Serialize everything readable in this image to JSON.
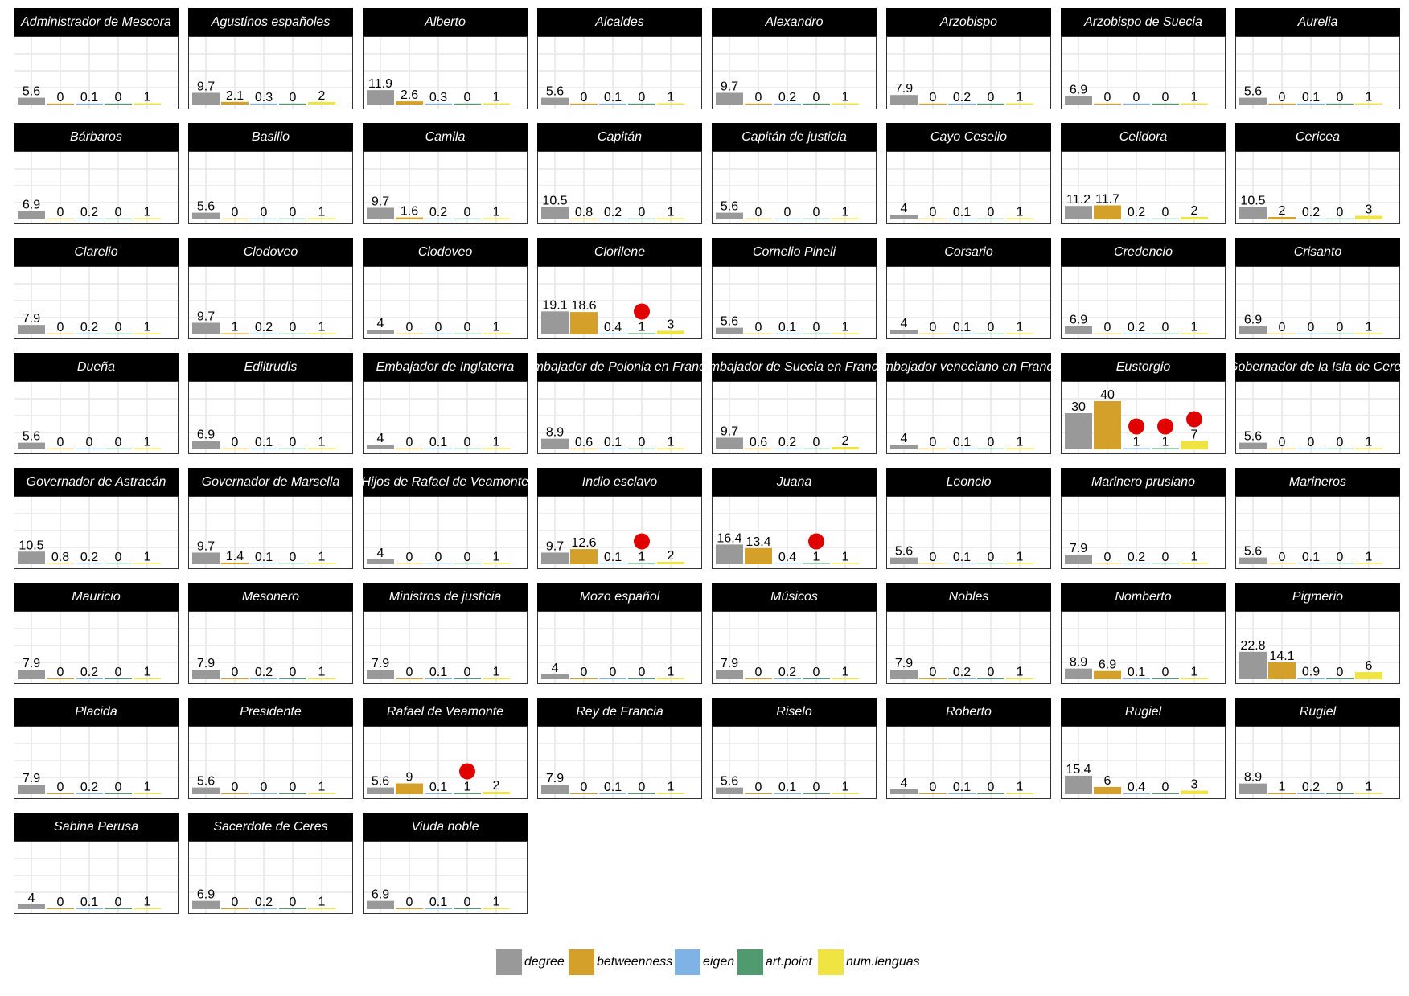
{
  "chart_data": {
    "type": "bar",
    "layout": "small-multiples",
    "categories": [
      "degree",
      "betweenness",
      "eigen",
      "art.point",
      "num.lenguas"
    ],
    "colors": {
      "degree": "#999999",
      "betweenness": "#d4a029",
      "eigen": "#7fb3e6",
      "art.point": "#4f9a6e",
      "num.lenguas": "#f0e442",
      "marker": "#e00000"
    },
    "marker": "red dot drawn above art.point value when the node is an articulation point",
    "ylim": [
      0,
      40
    ],
    "grid": true,
    "legend": {
      "position": "bottom",
      "entries": [
        "degree",
        "betweenness",
        "eigen",
        "art.point",
        "num.lenguas"
      ]
    },
    "panels": [
      {
        "name": "Administrador de Mescora",
        "values": [
          5.6,
          0,
          0.1,
          0,
          1
        ],
        "labels": [
          "5.6",
          "0",
          "0.1",
          "0",
          "1"
        ],
        "art_point": false
      },
      {
        "name": "Agustinos españoles",
        "values": [
          9.7,
          2.1,
          0.3,
          0,
          2
        ],
        "labels": [
          "9.7",
          "2.1",
          "0.3",
          "0",
          "2"
        ],
        "art_point": false
      },
      {
        "name": "Alberto",
        "values": [
          11.9,
          2.6,
          0.3,
          0,
          1
        ],
        "labels": [
          "11.9",
          "2.6",
          "0.3",
          "0",
          "1"
        ],
        "art_point": false
      },
      {
        "name": "Alcaldes",
        "values": [
          5.6,
          0,
          0.1,
          0,
          1
        ],
        "labels": [
          "5.6",
          "0",
          "0.1",
          "0",
          "1"
        ],
        "art_point": false
      },
      {
        "name": "Alexandro",
        "values": [
          9.7,
          0,
          0.2,
          0,
          1
        ],
        "labels": [
          "9.7",
          "0",
          "0.2",
          "0",
          "1"
        ],
        "art_point": false
      },
      {
        "name": "Arzobispo",
        "values": [
          7.9,
          0,
          0.2,
          0,
          1
        ],
        "labels": [
          "7.9",
          "0",
          "0.2",
          "0",
          "1"
        ],
        "art_point": false
      },
      {
        "name": "Arzobispo de Suecia",
        "values": [
          6.9,
          0,
          0,
          0,
          1
        ],
        "labels": [
          "6.9",
          "0",
          "0",
          "0",
          "1"
        ],
        "art_point": false
      },
      {
        "name": "Aurelia",
        "values": [
          5.6,
          0,
          0.1,
          0,
          1
        ],
        "labels": [
          "5.6",
          "0",
          "0.1",
          "0",
          "1"
        ],
        "art_point": false
      },
      {
        "name": "Bárbaros",
        "values": [
          6.9,
          0,
          0.2,
          0,
          1
        ],
        "labels": [
          "6.9",
          "0",
          "0.2",
          "0",
          "1"
        ],
        "art_point": false
      },
      {
        "name": "Basilio",
        "values": [
          5.6,
          0,
          0,
          0,
          1
        ],
        "labels": [
          "5.6",
          "0",
          "0",
          "0",
          "1"
        ],
        "art_point": false
      },
      {
        "name": "Camila",
        "values": [
          9.7,
          1.6,
          0.2,
          0,
          1
        ],
        "labels": [
          "9.7",
          "1.6",
          "0.2",
          "0",
          "1"
        ],
        "art_point": false
      },
      {
        "name": "Capitán",
        "values": [
          10.5,
          0.8,
          0.2,
          0,
          1
        ],
        "labels": [
          "10.5",
          "0.8",
          "0.2",
          "0",
          "1"
        ],
        "art_point": false
      },
      {
        "name": "Capitán de justicia",
        "values": [
          5.6,
          0,
          0,
          0,
          1
        ],
        "labels": [
          "5.6",
          "0",
          "0",
          "0",
          "1"
        ],
        "art_point": false
      },
      {
        "name": "Cayo Ceselio",
        "values": [
          4,
          0,
          0.1,
          0,
          1
        ],
        "labels": [
          "4",
          "0",
          "0.1",
          "0",
          "1"
        ],
        "art_point": false
      },
      {
        "name": "Celidora",
        "values": [
          11.2,
          11.7,
          0.2,
          0,
          2
        ],
        "labels": [
          "11.2",
          "11.7",
          "0.2",
          "0",
          "2"
        ],
        "art_point": false
      },
      {
        "name": "Cericea",
        "values": [
          10.5,
          2,
          0.2,
          0,
          3
        ],
        "labels": [
          "10.5",
          "2",
          "0.2",
          "0",
          "3"
        ],
        "art_point": false
      },
      {
        "name": "Clarelio",
        "values": [
          7.9,
          0,
          0.2,
          0,
          1
        ],
        "labels": [
          "7.9",
          "0",
          "0.2",
          "0",
          "1"
        ],
        "art_point": false
      },
      {
        "name": "Clodoveo",
        "values": [
          9.7,
          1,
          0.2,
          0,
          1
        ],
        "labels": [
          "9.7",
          "1",
          "0.2",
          "0",
          "1"
        ],
        "art_point": false
      },
      {
        "name": "Clodoveo",
        "values": [
          4,
          0,
          0,
          0,
          1
        ],
        "labels": [
          "4",
          "0",
          "0",
          "0",
          "1"
        ],
        "art_point": false
      },
      {
        "name": "Clorilene",
        "values": [
          19.1,
          18.6,
          0.4,
          1,
          3
        ],
        "labels": [
          "19.1",
          "18.6",
          "0.4",
          "1",
          "3"
        ],
        "art_point": true
      },
      {
        "name": "Cornelio Pineli",
        "values": [
          5.6,
          0,
          0.1,
          0,
          1
        ],
        "labels": [
          "5.6",
          "0",
          "0.1",
          "0",
          "1"
        ],
        "art_point": false
      },
      {
        "name": "Corsario",
        "values": [
          4,
          0,
          0.1,
          0,
          1
        ],
        "labels": [
          "4",
          "0",
          "0.1",
          "0",
          "1"
        ],
        "art_point": false
      },
      {
        "name": "Credencio",
        "values": [
          6.9,
          0,
          0.2,
          0,
          1
        ],
        "labels": [
          "6.9",
          "0",
          "0.2",
          "0",
          "1"
        ],
        "art_point": false
      },
      {
        "name": "Crisanto",
        "values": [
          6.9,
          0,
          0,
          0,
          1
        ],
        "labels": [
          "6.9",
          "0",
          "0",
          "0",
          "1"
        ],
        "art_point": false
      },
      {
        "name": "Dueña",
        "values": [
          5.6,
          0,
          0,
          0,
          1
        ],
        "labels": [
          "5.6",
          "0",
          "0",
          "0",
          "1"
        ],
        "art_point": false
      },
      {
        "name": "Ediltrudis",
        "values": [
          6.9,
          0,
          0.1,
          0,
          1
        ],
        "labels": [
          "6.9",
          "0",
          "0.1",
          "0",
          "1"
        ],
        "art_point": false
      },
      {
        "name": "Embajador de Inglaterra",
        "values": [
          4,
          0,
          0.1,
          0,
          1
        ],
        "labels": [
          "4",
          "0",
          "0.1",
          "0",
          "1"
        ],
        "art_point": false
      },
      {
        "name": "Embajador de Polonia en Francia",
        "values": [
          8.9,
          0.6,
          0.1,
          0,
          1
        ],
        "labels": [
          "8.9",
          "0.6",
          "0.1",
          "0",
          "1"
        ],
        "art_point": false
      },
      {
        "name": "Embajador de Suecia en Francia",
        "values": [
          9.7,
          0.6,
          0.2,
          0,
          2
        ],
        "labels": [
          "9.7",
          "0.6",
          "0.2",
          "0",
          "2"
        ],
        "art_point": false
      },
      {
        "name": "Embajador veneciano en Francia",
        "values": [
          4,
          0,
          0.1,
          0,
          1
        ],
        "labels": [
          "4",
          "0",
          "0.1",
          "0",
          "1"
        ],
        "art_point": false
      },
      {
        "name": "Eustorgio",
        "values": [
          30,
          40,
          1,
          1,
          7
        ],
        "labels": [
          "30",
          "40",
          "1",
          "1",
          "7"
        ],
        "art_point": true,
        "extra_dots": [
          2,
          4
        ]
      },
      {
        "name": "Gobernador de la Isla de Ceres",
        "values": [
          5.6,
          0,
          0,
          0,
          1
        ],
        "labels": [
          "5.6",
          "0",
          "0",
          "0",
          "1"
        ],
        "art_point": false
      },
      {
        "name": "Governador de Astracán",
        "values": [
          10.5,
          0.8,
          0.2,
          0,
          1
        ],
        "labels": [
          "10.5",
          "0.8",
          "0.2",
          "0",
          "1"
        ],
        "art_point": false
      },
      {
        "name": "Governador de Marsella",
        "values": [
          9.7,
          1.4,
          0.1,
          0,
          1
        ],
        "labels": [
          "9.7",
          "1.4",
          "0.1",
          "0",
          "1"
        ],
        "art_point": false
      },
      {
        "name": "Hijos de Rafael de Veamonte",
        "values": [
          4,
          0,
          0,
          0,
          1
        ],
        "labels": [
          "4",
          "0",
          "0",
          "0",
          "1"
        ],
        "art_point": false
      },
      {
        "name": "Indio esclavo",
        "values": [
          9.7,
          12.6,
          0.1,
          1,
          2
        ],
        "labels": [
          "9.7",
          "12.6",
          "0.1",
          "1",
          "2"
        ],
        "art_point": true
      },
      {
        "name": "Juana",
        "values": [
          16.4,
          13.4,
          0.4,
          1,
          1
        ],
        "labels": [
          "16.4",
          "13.4",
          "0.4",
          "1",
          "1"
        ],
        "art_point": true
      },
      {
        "name": "Leoncio",
        "values": [
          5.6,
          0,
          0.1,
          0,
          1
        ],
        "labels": [
          "5.6",
          "0",
          "0.1",
          "0",
          "1"
        ],
        "art_point": false
      },
      {
        "name": "Marinero prusiano",
        "values": [
          7.9,
          0,
          0.2,
          0,
          1
        ],
        "labels": [
          "7.9",
          "0",
          "0.2",
          "0",
          "1"
        ],
        "art_point": false
      },
      {
        "name": "Marineros",
        "values": [
          5.6,
          0,
          0.1,
          0,
          1
        ],
        "labels": [
          "5.6",
          "0",
          "0.1",
          "0",
          "1"
        ],
        "art_point": false
      },
      {
        "name": "Mauricio",
        "values": [
          7.9,
          0,
          0.2,
          0,
          1
        ],
        "labels": [
          "7.9",
          "0",
          "0.2",
          "0",
          "1"
        ],
        "art_point": false
      },
      {
        "name": "Mesonero",
        "values": [
          7.9,
          0,
          0.2,
          0,
          1
        ],
        "labels": [
          "7.9",
          "0",
          "0.2",
          "0",
          "1"
        ],
        "art_point": false
      },
      {
        "name": "Ministros de justicia",
        "values": [
          7.9,
          0,
          0.1,
          0,
          1
        ],
        "labels": [
          "7.9",
          "0",
          "0.1",
          "0",
          "1"
        ],
        "art_point": false
      },
      {
        "name": "Mozo español",
        "values": [
          4,
          0,
          0,
          0,
          1
        ],
        "labels": [
          "4",
          "0",
          "0",
          "0",
          "1"
        ],
        "art_point": false
      },
      {
        "name": "Músicos",
        "values": [
          7.9,
          0,
          0.2,
          0,
          1
        ],
        "labels": [
          "7.9",
          "0",
          "0.2",
          "0",
          "1"
        ],
        "art_point": false
      },
      {
        "name": "Nobles",
        "values": [
          7.9,
          0,
          0.2,
          0,
          1
        ],
        "labels": [
          "7.9",
          "0",
          "0.2",
          "0",
          "1"
        ],
        "art_point": false
      },
      {
        "name": "Nomberto",
        "values": [
          8.9,
          6.9,
          0.1,
          0,
          1
        ],
        "labels": [
          "8.9",
          "6.9",
          "0.1",
          "0",
          "1"
        ],
        "art_point": false
      },
      {
        "name": "Pigmerio",
        "values": [
          22.8,
          14.1,
          0.9,
          0,
          6
        ],
        "labels": [
          "22.8",
          "14.1",
          "0.9",
          "0",
          "6"
        ],
        "art_point": false
      },
      {
        "name": "Placida",
        "values": [
          7.9,
          0,
          0.2,
          0,
          1
        ],
        "labels": [
          "7.9",
          "0",
          "0.2",
          "0",
          "1"
        ],
        "art_point": false
      },
      {
        "name": "Presidente",
        "values": [
          5.6,
          0,
          0,
          0,
          1
        ],
        "labels": [
          "5.6",
          "0",
          "0",
          "0",
          "1"
        ],
        "art_point": false
      },
      {
        "name": "Rafael de Veamonte",
        "values": [
          5.6,
          9,
          0.1,
          1,
          2
        ],
        "labels": [
          "5.6",
          "9",
          "0.1",
          "1",
          "2"
        ],
        "art_point": true
      },
      {
        "name": "Rey de Francia",
        "values": [
          7.9,
          0,
          0.1,
          0,
          1
        ],
        "labels": [
          "7.9",
          "0",
          "0.1",
          "0",
          "1"
        ],
        "art_point": false
      },
      {
        "name": "Riselo",
        "values": [
          5.6,
          0,
          0.1,
          0,
          1
        ],
        "labels": [
          "5.6",
          "0",
          "0.1",
          "0",
          "1"
        ],
        "art_point": false
      },
      {
        "name": "Roberto",
        "values": [
          4,
          0,
          0.1,
          0,
          1
        ],
        "labels": [
          "4",
          "0",
          "0.1",
          "0",
          "1"
        ],
        "art_point": false
      },
      {
        "name": "Rugiel",
        "values": [
          15.4,
          6,
          0.4,
          0,
          3
        ],
        "labels": [
          "15.4",
          "6",
          "0.4",
          "0",
          "3"
        ],
        "art_point": false
      },
      {
        "name": "Rugiel",
        "values": [
          8.9,
          1,
          0.2,
          0,
          1
        ],
        "labels": [
          "8.9",
          "1",
          "0.2",
          "0",
          "1"
        ],
        "art_point": false
      },
      {
        "name": "Sabina Perusa",
        "values": [
          4,
          0,
          0.1,
          0,
          1
        ],
        "labels": [
          "4",
          "0",
          "0.1",
          "0",
          "1"
        ],
        "art_point": false
      },
      {
        "name": "Sacerdote de Ceres",
        "values": [
          6.9,
          0,
          0.2,
          0,
          1
        ],
        "labels": [
          "6.9",
          "0",
          "0.2",
          "0",
          "1"
        ],
        "art_point": false
      },
      {
        "name": "Viuda noble",
        "values": [
          6.9,
          0,
          0.1,
          0,
          1
        ],
        "labels": [
          "6.9",
          "0",
          "0.1",
          "0",
          "1"
        ],
        "art_point": false
      }
    ]
  }
}
